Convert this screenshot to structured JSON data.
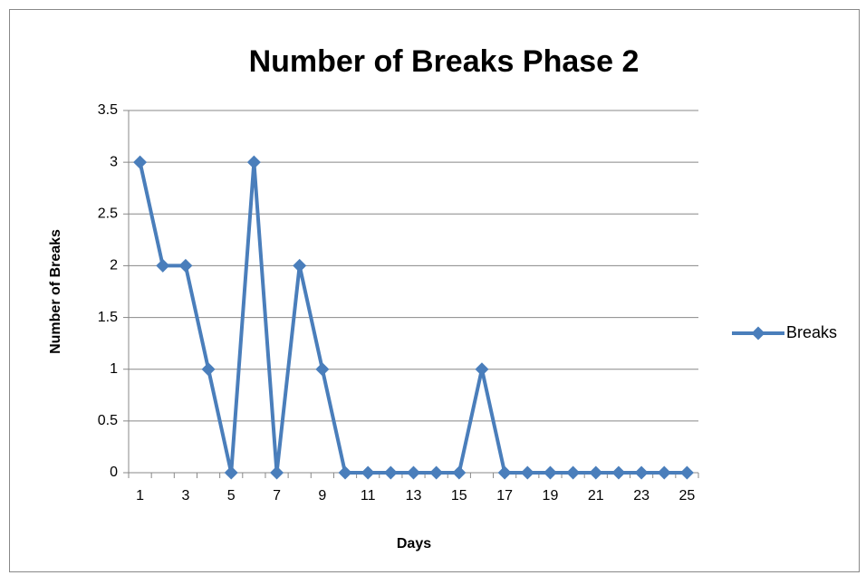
{
  "chart_data": {
    "type": "line",
    "title": "Number of Breaks Phase 2",
    "x_label": "Days",
    "y_label": "Number of Breaks",
    "categories": [
      "1",
      null,
      "3",
      null,
      "5",
      null,
      "7",
      null,
      "9",
      null,
      "11",
      null,
      "13",
      null,
      "15",
      null,
      "17",
      null,
      "19",
      null,
      "21",
      null,
      "23",
      null,
      "25"
    ],
    "series": [
      {
        "name": "Breaks",
        "color": "#4a7ebb",
        "values": [
          3,
          2,
          2,
          1,
          0,
          3,
          0,
          2,
          1,
          0,
          0,
          0,
          0,
          0,
          0,
          1,
          0,
          0,
          0,
          0,
          0,
          0,
          0,
          0,
          0
        ]
      }
    ],
    "ylim": [
      0,
      3.5
    ],
    "yticks": [
      0,
      0.5,
      1,
      1.5,
      2,
      2.5,
      3,
      3.5
    ],
    "grid": true,
    "legend": "right"
  }
}
